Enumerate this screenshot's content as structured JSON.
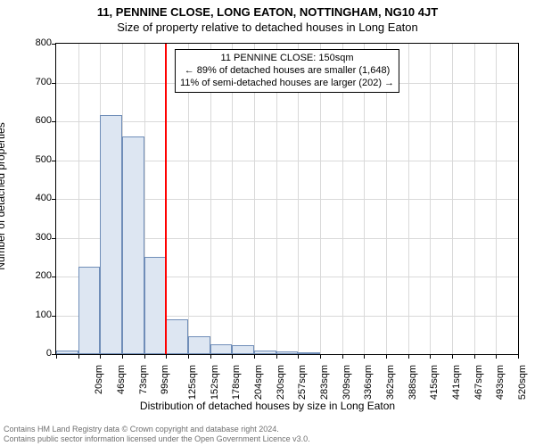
{
  "title_main": "11, PENNINE CLOSE, LONG EATON, NOTTINGHAM, NG10 4JT",
  "title_sub": "Size of property relative to detached houses in Long Eaton",
  "ylabel": "Number of detached properties",
  "xlabel": "Distribution of detached houses by size in Long Eaton",
  "chart": {
    "type": "histogram",
    "background_color": "#ffffff",
    "grid_color": "#d9d9d9",
    "bar_fill": "#dde6f2",
    "bar_stroke": "#6f8db8",
    "refline_color": "#ff0000",
    "ylim": [
      0,
      800
    ],
    "yticks": [
      0,
      100,
      200,
      300,
      400,
      500,
      600,
      700,
      800
    ],
    "x_start": 20,
    "x_step": 26.3,
    "x_count": 21,
    "x_unit": "sqm",
    "bars": [
      10,
      225,
      615,
      560,
      250,
      90,
      45,
      25,
      22,
      10,
      8,
      5,
      0,
      0,
      0,
      0,
      0,
      0,
      0,
      0,
      0
    ],
    "ref_x": 150,
    "annot": {
      "line1": "11 PENNINE CLOSE: 150sqm",
      "line2": "← 89% of detached houses are smaller (1,648)",
      "line3": "11% of semi-detached houses are larger (202) →"
    }
  },
  "footer": {
    "line1": "Contains HM Land Registry data © Crown copyright and database right 2024.",
    "line2": "Contains public sector information licensed under the Open Government Licence v3.0."
  }
}
